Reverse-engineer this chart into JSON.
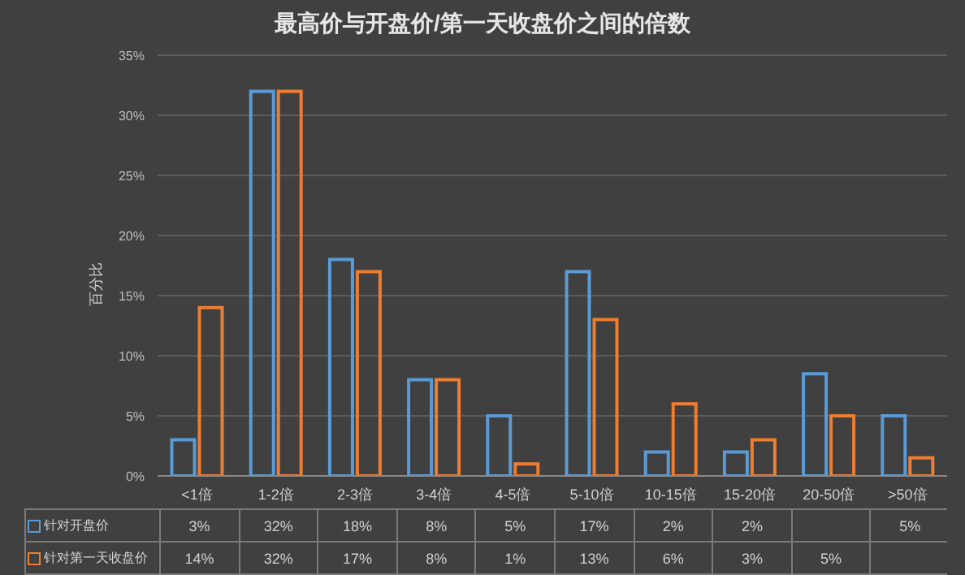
{
  "chart_data": {
    "type": "bar",
    "title": "最高价与开盘价/第一天收盘价之间的倍数",
    "ylabel": "百分比",
    "categories": [
      "<1倍",
      "1-2倍",
      "2-3倍",
      "3-4倍",
      "4-5倍",
      "5-10倍",
      "10-15倍",
      "15-20倍",
      "20-50倍",
      ">50倍"
    ],
    "series": [
      {
        "name": "针对开盘价",
        "color": "#5b9bd5",
        "values": [
          3,
          32,
          18,
          8,
          5,
          17,
          2,
          2,
          8.5,
          5
        ],
        "value_labels": [
          "3%",
          "32%",
          "18%",
          "8%",
          "5%",
          "17%",
          "2%",
          "2%",
          null,
          "5%"
        ]
      },
      {
        "name": "针对第一天收盘价",
        "color": "#ed7d31",
        "values": [
          14,
          32,
          17,
          8,
          1,
          13,
          6,
          3,
          5,
          1.5
        ],
        "value_labels": [
          "14%",
          "32%",
          "17%",
          "8%",
          "1%",
          "13%",
          "6%",
          "3%",
          "5%",
          null
        ]
      }
    ],
    "ylim": [
      0,
      35
    ],
    "yticks": [
      {
        "value": 0,
        "label": "0%"
      },
      {
        "value": 5,
        "label": "5%"
      },
      {
        "value": 10,
        "label": "10%"
      },
      {
        "value": 15,
        "label": "15%"
      },
      {
        "value": 20,
        "label": "20%"
      },
      {
        "value": 25,
        "label": "25%"
      },
      {
        "value": 30,
        "label": "30%"
      },
      {
        "value": 35,
        "label": "35%"
      }
    ],
    "grid": "y",
    "legend": "bottom left"
  }
}
